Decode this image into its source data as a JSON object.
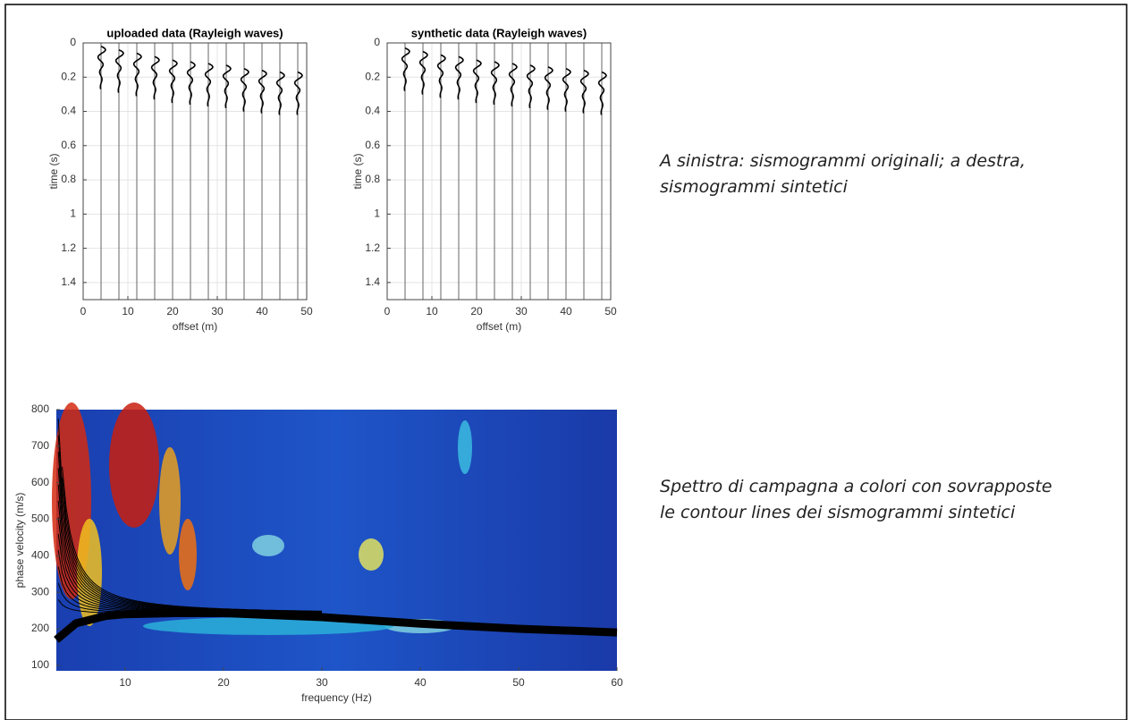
{
  "chart_data": [
    {
      "type": "wiggle",
      "title": "uploaded data (Rayleigh waves)",
      "xlabel": "offset (m)",
      "ylabel": "time (s)",
      "x": [
        4,
        8,
        12,
        16,
        20,
        24,
        28,
        32,
        36,
        40,
        44,
        48
      ],
      "values": [
        0.02,
        0.04,
        0.06,
        0.08,
        0.1,
        0.11,
        0.12,
        0.13,
        0.15,
        0.16,
        0.17,
        0.17
      ],
      "xlim": [
        0,
        50
      ],
      "ylim": [
        0,
        1.5
      ],
      "xticks": [
        0,
        10,
        20,
        30,
        40,
        50
      ],
      "yticks": [
        0,
        0.2,
        0.4,
        0.6,
        0.8,
        1,
        1.2,
        1.4
      ],
      "grid": true,
      "color": "#000000"
    },
    {
      "type": "wiggle",
      "title": "synthetic data (Rayleigh waves)",
      "xlabel": "offset (m)",
      "ylabel": "time (s)",
      "x": [
        4,
        8,
        12,
        16,
        20,
        24,
        28,
        32,
        36,
        40,
        44,
        48
      ],
      "values": [
        0.03,
        0.05,
        0.07,
        0.08,
        0.1,
        0.11,
        0.12,
        0.13,
        0.14,
        0.15,
        0.16,
        0.17
      ],
      "xlim": [
        0,
        50
      ],
      "ylim": [
        0,
        1.5
      ],
      "xticks": [
        0,
        10,
        20,
        30,
        40,
        50
      ],
      "yticks": [
        0,
        0.2,
        0.4,
        0.6,
        0.8,
        1,
        1.2,
        1.4
      ],
      "grid": true,
      "color": "#000000"
    },
    {
      "type": "spectrum",
      "xlabel": "frequency (Hz)",
      "ylabel": "phase velocity (m/s)",
      "x": [
        3,
        5,
        8,
        10,
        15,
        20,
        30,
        40,
        50,
        60
      ],
      "values": [
        170,
        215,
        235,
        240,
        243,
        243,
        232,
        214,
        200,
        190
      ],
      "xlim": [
        3,
        60
      ],
      "ylim": [
        85,
        800
      ],
      "xticks": [
        10,
        20,
        30,
        40,
        50,
        60
      ],
      "yticks": [
        100,
        200,
        300,
        400,
        500,
        600,
        700,
        800
      ],
      "color": "#000000"
    }
  ],
  "captions": [
    "A sinistra: sismogrammi originali; a destra, sismogrammi sintetici",
    "Spettro di campagna a colori con sovrapposte le contour lines dei sismogrammi sintetici"
  ]
}
